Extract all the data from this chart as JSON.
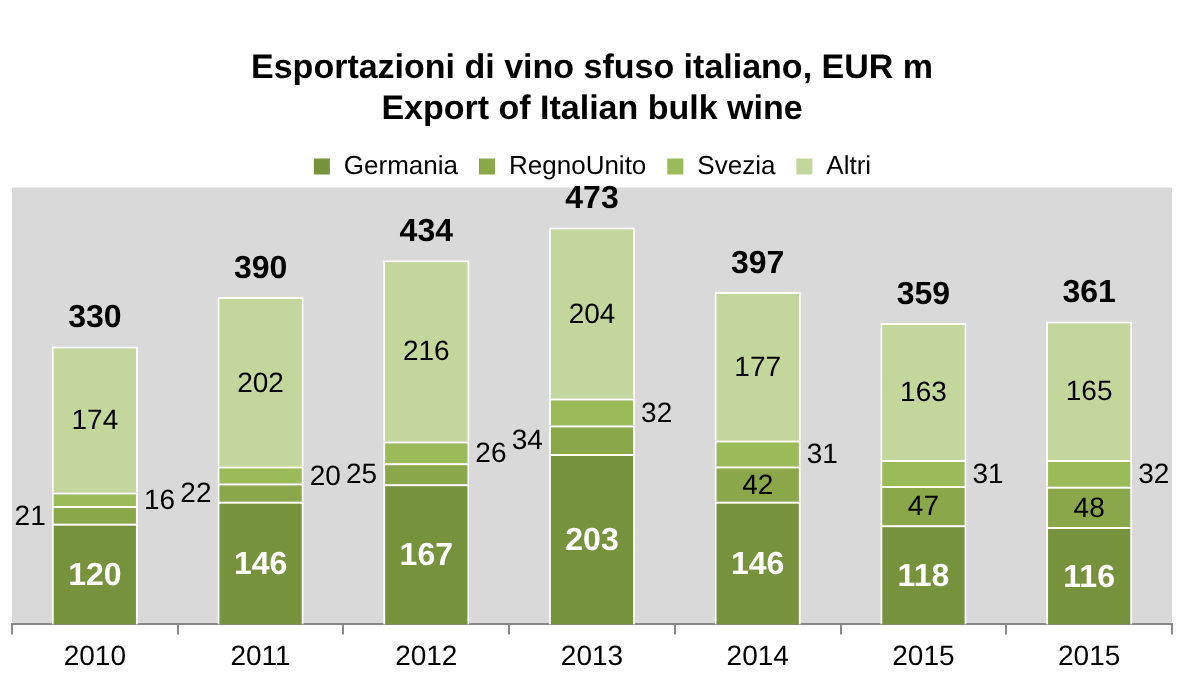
{
  "chart_data": {
    "type": "bar",
    "title": "Esportazioni di vino sfuso italiano, EUR m",
    "subtitle": "Export of Italian bulk wine",
    "categories": [
      "2010",
      "2011",
      "2012",
      "2013",
      "2014",
      "2015",
      "2015"
    ],
    "stacked": true,
    "data_labels": true,
    "legend": "top",
    "grid": false,
    "tick_labels": "x",
    "series": [
      {
        "name": "Germania",
        "color": "#76923c",
        "values": [
          120,
          146,
          167,
          203,
          146,
          118,
          116
        ]
      },
      {
        "name": "RegnoUnito",
        "color": "#8aa84a",
        "values": [
          21,
          22,
          25,
          34,
          42,
          47,
          48
        ]
      },
      {
        "name": "Svezia",
        "color": "#9bbb59",
        "values": [
          16,
          20,
          26,
          32,
          31,
          31,
          32
        ]
      },
      {
        "name": "Altri",
        "color": "#c3d69b",
        "values": [
          174,
          202,
          216,
          204,
          177,
          163,
          165
        ]
      }
    ],
    "totals": [
      "330",
      "390",
      "434",
      "473",
      "397",
      "359",
      "361"
    ]
  }
}
